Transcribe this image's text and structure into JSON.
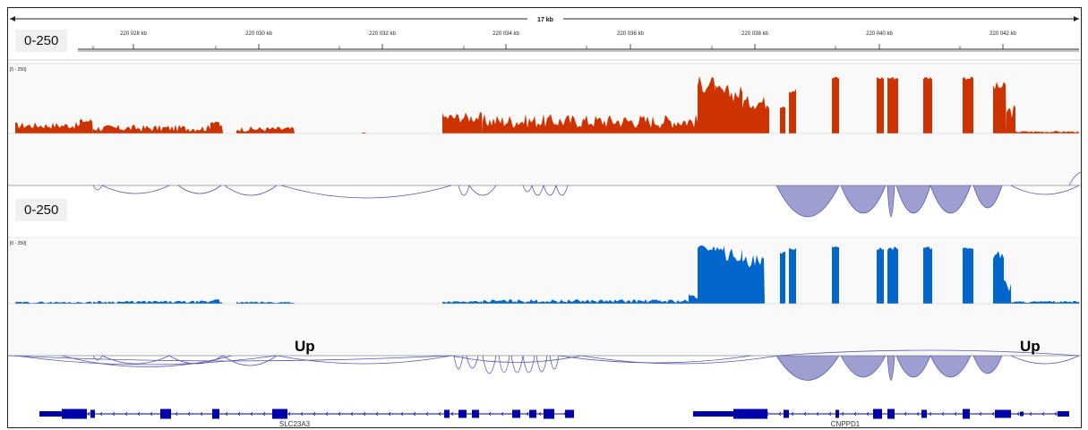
{
  "span_label": "17 kb",
  "ruler_ticks": [
    "220 028 kb",
    "220 030 kb",
    "220 032 kb",
    "220 034 kb",
    "220 036 kb",
    "220 038 kb",
    "220 040 kb",
    "220 042 kb"
  ],
  "tracks": [
    {
      "range_label": "0-250",
      "data_range": "[0 - 250]",
      "color": "#cc3300",
      "sashimi_color": "#6a6ab8",
      "annotation": ""
    },
    {
      "range_label": "0-250",
      "data_range": "[0 - 250]",
      "color": "#0066cc",
      "sashimi_color": "#6a6ab8",
      "annotation_left": "Up",
      "annotation_right": "Up"
    }
  ],
  "genes": [
    {
      "name": "SLC23A3",
      "color": "#0000aa"
    },
    {
      "name": "CNPPD1",
      "color": "#0000aa"
    }
  ]
}
